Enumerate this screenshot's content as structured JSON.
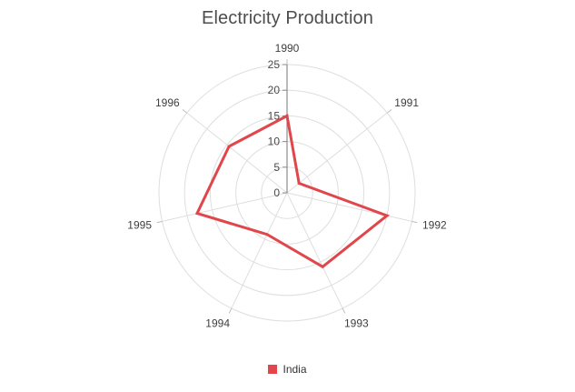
{
  "chart_data": {
    "type": "radar",
    "title": "Electricity Production",
    "categories": [
      "1990",
      "1991",
      "1992",
      "1993",
      "1994",
      "1995",
      "1996"
    ],
    "series": [
      {
        "name": "India",
        "color": "#e0464b",
        "values": [
          15,
          3,
          20,
          16,
          9,
          18,
          14.5
        ]
      }
    ],
    "radial_axis": {
      "min": 0,
      "max": 25,
      "step": 5,
      "tick_labels": [
        "0",
        "5",
        "10",
        "15",
        "20",
        "25"
      ]
    },
    "grid": true,
    "grid_color": "#dedede",
    "axis_line_color": "#8c8c8c",
    "legend": {
      "position": "bottom"
    }
  }
}
